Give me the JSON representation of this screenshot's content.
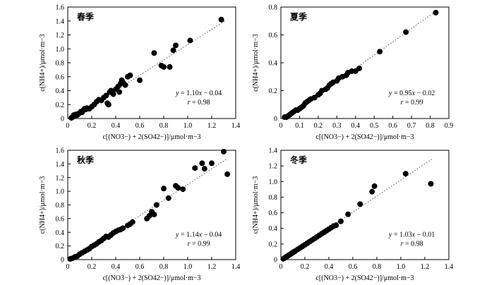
{
  "figure_title": "",
  "chart_data": [
    {
      "type": "scatter",
      "title": "春季",
      "ylabel": "c(NH4+)/μmol·m−3",
      "xlabel": "c[(NO3−) + 2(SO42−)]/μmol·m−3",
      "xlim": [
        0,
        1.4
      ],
      "ylim": [
        0,
        1.6
      ],
      "xticks": [
        "0",
        "0.2",
        "0.4",
        "0.6",
        "0.8",
        "1.0",
        "1.2",
        "1.4"
      ],
      "yticks": [
        "0",
        "0.2",
        "0.4",
        "0.6",
        "0.8",
        "1.0",
        "1.2",
        "1.4",
        "1.6"
      ],
      "fit_line": {
        "slope": 1.1,
        "intercept": -0.04,
        "x_range": [
          0.03,
          1.32
        ]
      },
      "equation": {
        "y": "y",
        "eq": " = 1.10",
        "x": "x",
        "rest": " − 0.04"
      },
      "correlation": {
        "r": "r",
        "val": " = 0.98"
      },
      "grid": false,
      "points": [
        [
          0.03,
          0.01
        ],
        [
          0.04,
          0.02
        ],
        [
          0.05,
          0.03
        ],
        [
          0.06,
          0.04
        ],
        [
          0.05,
          0.05
        ],
        [
          0.07,
          0.06
        ],
        [
          0.08,
          0.05
        ],
        [
          0.09,
          0.07
        ],
        [
          0.1,
          0.08
        ],
        [
          0.11,
          0.1
        ],
        [
          0.12,
          0.09
        ],
        [
          0.13,
          0.12
        ],
        [
          0.14,
          0.14
        ],
        [
          0.15,
          0.13
        ],
        [
          0.16,
          0.15
        ],
        [
          0.18,
          0.14
        ],
        [
          0.2,
          0.17
        ],
        [
          0.22,
          0.2
        ],
        [
          0.24,
          0.24
        ],
        [
          0.26,
          0.27
        ],
        [
          0.28,
          0.26
        ],
        [
          0.3,
          0.3
        ],
        [
          0.32,
          0.33
        ],
        [
          0.33,
          0.22
        ],
        [
          0.34,
          0.2
        ],
        [
          0.35,
          0.38
        ],
        [
          0.36,
          0.4
        ],
        [
          0.38,
          0.35
        ],
        [
          0.4,
          0.42
        ],
        [
          0.42,
          0.46
        ],
        [
          0.43,
          0.38
        ],
        [
          0.44,
          0.5
        ],
        [
          0.45,
          0.55
        ],
        [
          0.46,
          0.52
        ],
        [
          0.48,
          0.48
        ],
        [
          0.5,
          0.6
        ],
        [
          0.52,
          0.62
        ],
        [
          0.6,
          0.55
        ],
        [
          0.72,
          0.94
        ],
        [
          0.78,
          0.76
        ],
        [
          0.8,
          0.74
        ],
        [
          0.85,
          0.74
        ],
        [
          0.88,
          0.98
        ],
        [
          0.9,
          1.05
        ],
        [
          1.02,
          1.12
        ],
        [
          1.28,
          1.42
        ]
      ]
    },
    {
      "type": "scatter",
      "title": "夏季",
      "ylabel": "c(NH4+)/μmol·m−3",
      "xlabel": "c[(NO3−) + 2(SO42−)]/μmol·m−3",
      "xlim": [
        0,
        0.9
      ],
      "ylim": [
        0,
        0.8
      ],
      "xticks": [
        "0",
        "0.1",
        "0.2",
        "0.3",
        "0.4",
        "0.5",
        "0.6",
        "0.7",
        "0.8",
        "0.9"
      ],
      "yticks": [
        "0",
        "0.2",
        "0.4",
        "0.6",
        "0.8"
      ],
      "fit_line": {
        "slope": 0.95,
        "intercept": -0.02,
        "x_range": [
          0.02,
          0.84
        ]
      },
      "equation": {
        "y": "y",
        "eq": " = 0.95",
        "x": "x",
        "rest": " − 0.02"
      },
      "correlation": {
        "r": "r",
        "val": " = 0.99"
      },
      "grid": false,
      "points": [
        [
          0.02,
          0.01
        ],
        [
          0.03,
          0.01
        ],
        [
          0.04,
          0.02
        ],
        [
          0.05,
          0.03
        ],
        [
          0.06,
          0.04
        ],
        [
          0.07,
          0.05
        ],
        [
          0.08,
          0.06
        ],
        [
          0.09,
          0.06
        ],
        [
          0.1,
          0.07
        ],
        [
          0.11,
          0.08
        ],
        [
          0.12,
          0.09
        ],
        [
          0.13,
          0.11
        ],
        [
          0.14,
          0.12
        ],
        [
          0.15,
          0.13
        ],
        [
          0.16,
          0.14
        ],
        [
          0.18,
          0.15
        ],
        [
          0.2,
          0.17
        ],
        [
          0.21,
          0.18
        ],
        [
          0.22,
          0.2
        ],
        [
          0.24,
          0.21
        ],
        [
          0.25,
          0.22
        ],
        [
          0.26,
          0.24
        ],
        [
          0.27,
          0.25
        ],
        [
          0.28,
          0.26
        ],
        [
          0.3,
          0.27
        ],
        [
          0.31,
          0.29
        ],
        [
          0.33,
          0.3
        ],
        [
          0.35,
          0.31
        ],
        [
          0.36,
          0.33
        ],
        [
          0.38,
          0.34
        ],
        [
          0.4,
          0.34
        ],
        [
          0.42,
          0.36
        ],
        [
          0.53,
          0.48
        ],
        [
          0.67,
          0.62
        ],
        [
          0.83,
          0.76
        ]
      ]
    },
    {
      "type": "scatter",
      "title": "秋季",
      "ylabel": "c(NH4+)/μmol·m−3",
      "xlabel": "c[(NO3−) + 2(SO42−)]/μmol·m−3",
      "xlim": [
        0,
        1.4
      ],
      "ylim": [
        0,
        1.6
      ],
      "xticks": [
        "0",
        "0.2",
        "0.4",
        "0.6",
        "0.8",
        "1.0",
        "1.2",
        "1.4"
      ],
      "yticks": [
        "0",
        "0.2",
        "0.4",
        "0.6",
        "0.8",
        "1.0",
        "1.2",
        "1.4",
        "1.6"
      ],
      "fit_line": {
        "slope": 1.14,
        "intercept": -0.04,
        "x_range": [
          0.03,
          1.33
        ]
      },
      "equation": {
        "y": "y",
        "eq": " = 1.14",
        "x": "x",
        "rest": " − 0.04"
      },
      "correlation": {
        "r": "r",
        "val": " = 0.99"
      },
      "grid": false,
      "points": [
        [
          0.02,
          0.01
        ],
        [
          0.04,
          0.02
        ],
        [
          0.06,
          0.04
        ],
        [
          0.08,
          0.05
        ],
        [
          0.1,
          0.08
        ],
        [
          0.12,
          0.1
        ],
        [
          0.14,
          0.12
        ],
        [
          0.16,
          0.14
        ],
        [
          0.18,
          0.16
        ],
        [
          0.2,
          0.19
        ],
        [
          0.22,
          0.21
        ],
        [
          0.24,
          0.23
        ],
        [
          0.26,
          0.26
        ],
        [
          0.28,
          0.28
        ],
        [
          0.3,
          0.31
        ],
        [
          0.32,
          0.34
        ],
        [
          0.34,
          0.33
        ],
        [
          0.36,
          0.36
        ],
        [
          0.38,
          0.39
        ],
        [
          0.4,
          0.41
        ],
        [
          0.42,
          0.43
        ],
        [
          0.44,
          0.44
        ],
        [
          0.46,
          0.46
        ],
        [
          0.5,
          0.5
        ],
        [
          0.52,
          0.52
        ],
        [
          0.54,
          0.55
        ],
        [
          0.66,
          0.6
        ],
        [
          0.68,
          0.64
        ],
        [
          0.7,
          0.7
        ],
        [
          0.72,
          0.66
        ],
        [
          0.74,
          0.8
        ],
        [
          0.8,
          1.04
        ],
        [
          0.84,
          0.9
        ],
        [
          0.9,
          1.08
        ],
        [
          0.92,
          1.05
        ],
        [
          0.96,
          1.03
        ],
        [
          1.06,
          1.34
        ],
        [
          1.12,
          1.41
        ],
        [
          1.14,
          1.33
        ],
        [
          1.2,
          1.41
        ],
        [
          1.3,
          1.58
        ],
        [
          1.33,
          1.25
        ]
      ]
    },
    {
      "type": "scatter",
      "title": "冬季",
      "ylabel": "c(NH4+)/μmol·m−3",
      "xlabel": "c[(NO3−) + 2(SO42−)]/μmol·m−3",
      "xlim": [
        0,
        1.4
      ],
      "ylim": [
        0,
        1.4
      ],
      "xticks": [
        "0",
        "0.2",
        "0.4",
        "0.6",
        "0.8",
        "1.0",
        "1.2",
        "1.4"
      ],
      "yticks": [
        "0",
        "0.2",
        "0.4",
        "0.6",
        "0.8",
        "1.0",
        "1.2",
        "1.4"
      ],
      "fit_line": {
        "slope": 1.03,
        "intercept": -0.01,
        "x_range": [
          0.02,
          1.26
        ]
      },
      "equation": {
        "y": "y",
        "eq": " = 1.03",
        "x": "x",
        "rest": " − 0.01"
      },
      "correlation": {
        "r": "r",
        "val": " = 0.98"
      },
      "grid": false,
      "points": [
        [
          0.02,
          0.01
        ],
        [
          0.03,
          0.02
        ],
        [
          0.04,
          0.03
        ],
        [
          0.05,
          0.04
        ],
        [
          0.06,
          0.05
        ],
        [
          0.07,
          0.06
        ],
        [
          0.08,
          0.07
        ],
        [
          0.09,
          0.08
        ],
        [
          0.1,
          0.09
        ],
        [
          0.11,
          0.1
        ],
        [
          0.12,
          0.11
        ],
        [
          0.14,
          0.13
        ],
        [
          0.16,
          0.15
        ],
        [
          0.18,
          0.17
        ],
        [
          0.2,
          0.19
        ],
        [
          0.22,
          0.21
        ],
        [
          0.24,
          0.23
        ],
        [
          0.26,
          0.25
        ],
        [
          0.28,
          0.27
        ],
        [
          0.3,
          0.29
        ],
        [
          0.32,
          0.31
        ],
        [
          0.34,
          0.33
        ],
        [
          0.36,
          0.35
        ],
        [
          0.38,
          0.37
        ],
        [
          0.4,
          0.39
        ],
        [
          0.42,
          0.41
        ],
        [
          0.44,
          0.43
        ],
        [
          0.46,
          0.44
        ],
        [
          0.5,
          0.49
        ],
        [
          0.56,
          0.58
        ],
        [
          0.66,
          0.71
        ],
        [
          0.76,
          0.87
        ],
        [
          0.78,
          0.94
        ],
        [
          1.04,
          1.1
        ],
        [
          1.25,
          0.97
        ]
      ]
    }
  ]
}
